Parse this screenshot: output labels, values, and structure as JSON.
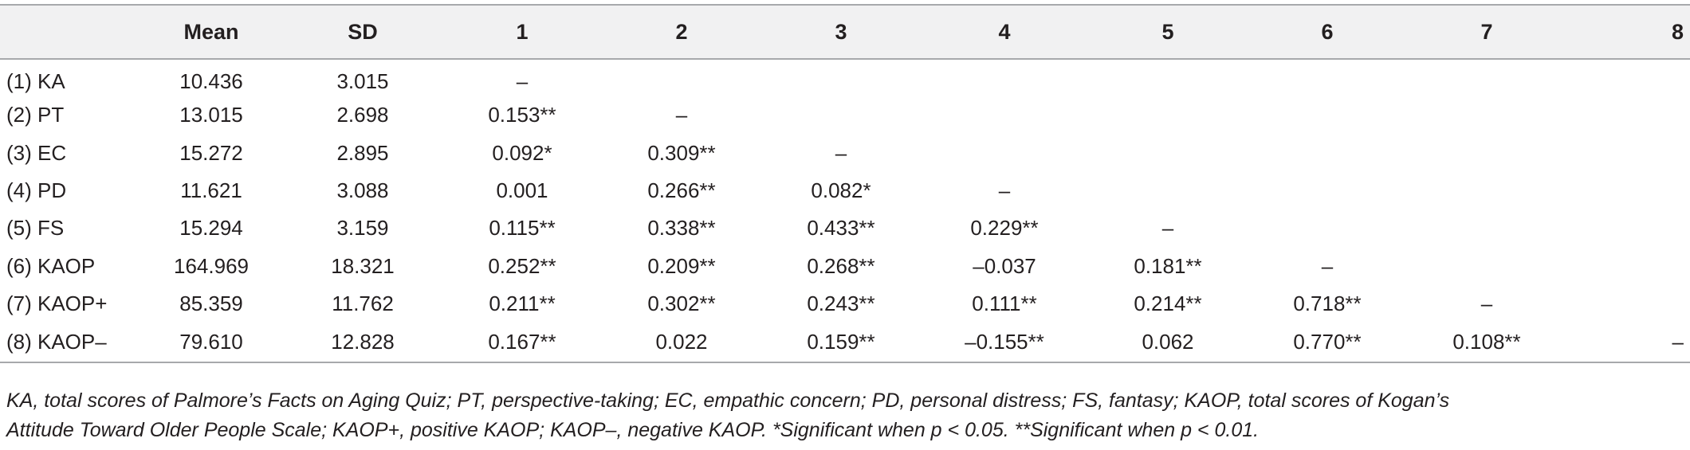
{
  "table": {
    "headers": [
      "",
      "Mean",
      "SD",
      "1",
      "2",
      "3",
      "4",
      "5",
      "6",
      "7",
      "8"
    ],
    "rows": [
      {
        "label": "(1) KA",
        "cells": [
          "10.436",
          "3.015",
          "–",
          "",
          "",
          "",
          "",
          "",
          "",
          ""
        ]
      },
      {
        "label": "(2) PT",
        "cells": [
          "13.015",
          "2.698",
          "0.153**",
          "–",
          "",
          "",
          "",
          "",
          "",
          ""
        ]
      },
      {
        "label": "(3) EC",
        "cells": [
          "15.272",
          "2.895",
          "0.092*",
          "0.309**",
          "–",
          "",
          "",
          "",
          "",
          ""
        ]
      },
      {
        "label": "(4) PD",
        "cells": [
          "11.621",
          "3.088",
          "0.001",
          "0.266**",
          "0.082*",
          "–",
          "",
          "",
          "",
          ""
        ]
      },
      {
        "label": "(5) FS",
        "cells": [
          "15.294",
          "3.159",
          "0.115**",
          "0.338**",
          "0.433**",
          "0.229**",
          "–",
          "",
          "",
          ""
        ]
      },
      {
        "label": "(6) KAOP",
        "cells": [
          "164.969",
          "18.321",
          "0.252**",
          "0.209**",
          "0.268**",
          "–0.037",
          "0.181**",
          "–",
          "",
          ""
        ]
      },
      {
        "label": "(7) KAOP+",
        "cells": [
          "85.359",
          "11.762",
          "0.211**",
          "0.302**",
          "0.243**",
          "0.111**",
          "0.214**",
          "0.718**",
          "–",
          ""
        ]
      },
      {
        "label": "(8) KAOP–",
        "cells": [
          "79.610",
          "12.828",
          "0.167**",
          "0.022",
          "0.159**",
          "–0.155**",
          "0.062",
          "0.770**",
          "0.108**",
          "–"
        ]
      }
    ]
  },
  "footnote": {
    "line1": "KA, total scores of Palmore’s Facts on Aging Quiz; PT, perspective-taking; EC, empathic concern; PD, personal distress; FS, fantasy; KAOP, total scores of Kogan’s",
    "line2": "Attitude Toward Older People Scale; KAOP+, positive KAOP; KAOP–, negative KAOP. *Significant when p < 0.05. **Significant when p < 0.01."
  }
}
